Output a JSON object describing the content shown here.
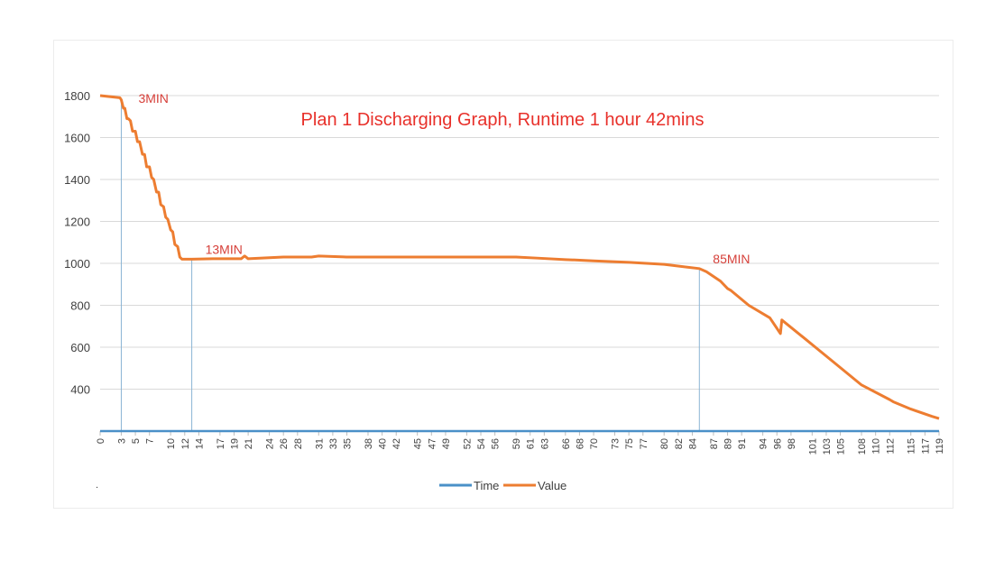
{
  "chart_data": {
    "type": "line",
    "title": "Plan 1 Discharging Graph, Runtime 1 hour 42mins",
    "xlabel": "",
    "ylabel": "",
    "ylim": [
      200,
      1800
    ],
    "yticks": [
      400,
      600,
      800,
      1000,
      1200,
      1400,
      1600,
      1800
    ],
    "xlim": [
      0,
      119
    ],
    "xticks": [
      0,
      3,
      5,
      7,
      10,
      12,
      14,
      17,
      19,
      21,
      24,
      26,
      28,
      31,
      33,
      35,
      38,
      40,
      42,
      45,
      47,
      49,
      52,
      54,
      56,
      59,
      61,
      63,
      66,
      68,
      70,
      73,
      75,
      77,
      80,
      82,
      84,
      87,
      89,
      91,
      94,
      96,
      98,
      101,
      103,
      105,
      108,
      110,
      112,
      115,
      117,
      119
    ],
    "grid": true,
    "legend_position": "bottom",
    "colors": {
      "time": "#4a90c8",
      "value": "#ed7d31",
      "title": "#e8302a",
      "annot": "#d6403a",
      "marker": "#8ab4d4"
    },
    "series": [
      {
        "name": "Time",
        "x": [
          0,
          119
        ],
        "y": [
          200,
          200
        ]
      },
      {
        "name": "Value",
        "x": [
          0,
          2.8,
          3,
          3.3,
          3.5,
          3.8,
          4.0,
          4.3,
          4.6,
          5.0,
          5.3,
          5.6,
          6.0,
          6.3,
          6.6,
          7.0,
          7.3,
          7.6,
          8.0,
          8.3,
          8.6,
          9.0,
          9.3,
          9.6,
          10.0,
          10.3,
          10.6,
          11.0,
          11.3,
          11.6,
          12.0,
          12.3,
          12.6,
          13,
          16,
          20,
          20.5,
          21,
          26,
          30,
          31,
          35,
          40,
          45,
          50,
          55,
          59,
          62,
          66,
          70,
          75,
          80,
          85,
          86,
          88,
          89,
          89.5,
          92,
          95,
          96.5,
          96.7,
          100,
          104,
          108,
          112,
          112.5,
          115,
          118,
          119
        ],
        "y": [
          1800,
          1790,
          1780,
          1740,
          1740,
          1690,
          1690,
          1680,
          1630,
          1630,
          1580,
          1580,
          1520,
          1520,
          1460,
          1460,
          1410,
          1400,
          1340,
          1340,
          1280,
          1270,
          1220,
          1210,
          1160,
          1150,
          1090,
          1080,
          1030,
          1020,
          1020,
          1020,
          1020,
          1020,
          1022,
          1022,
          1035,
          1022,
          1030,
          1030,
          1035,
          1030,
          1030,
          1030,
          1030,
          1030,
          1030,
          1025,
          1018,
          1012,
          1005,
          995,
          975,
          960,
          915,
          880,
          870,
          800,
          740,
          665,
          730,
          640,
          530,
          420,
          350,
          340,
          305,
          270,
          260
        ]
      }
    ],
    "annotations": [
      {
        "text": "3MIN",
        "x": 3
      },
      {
        "text": "13MIN",
        "x": 13
      },
      {
        "text": "85MIN",
        "x": 85
      }
    ],
    "legend": [
      {
        "label": "Time"
      },
      {
        "label": "Value"
      }
    ]
  },
  "footnote": "."
}
